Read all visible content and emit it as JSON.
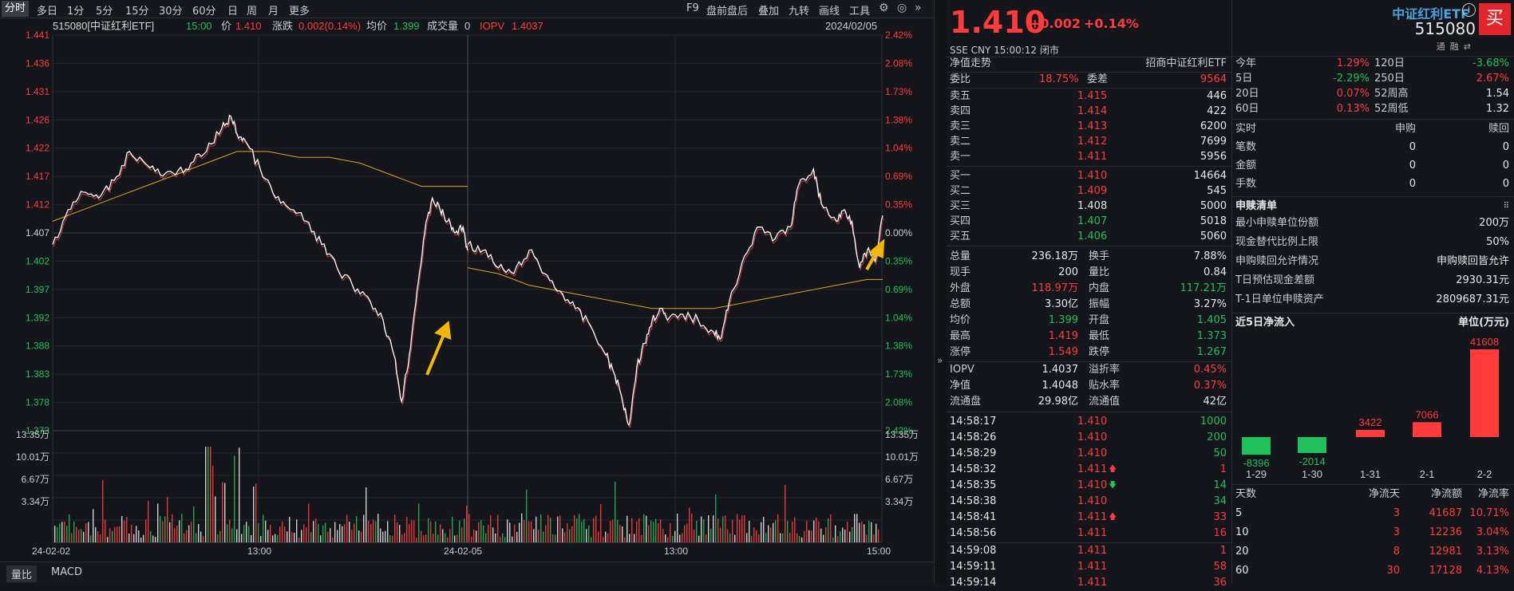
{
  "toolbar": {
    "tabs": [
      "分时",
      "多日",
      "1分",
      "5分",
      "15分",
      "30分",
      "60分",
      "日",
      "周",
      "月",
      "更多"
    ],
    "active": "分时",
    "right_items": [
      "F9",
      "盘前盘后",
      "叠加",
      "九转",
      "画线",
      "工具"
    ]
  },
  "chart_header": {
    "code_name": "515080[中证红利ETF]",
    "time": "15:00",
    "price_label": "价",
    "price": "1.410",
    "change_label": "涨跌",
    "change": "0.002(0.14%)",
    "avg_label": "均价",
    "avg": "1.399",
    "volume_label": "成交量",
    "volume": "0",
    "iopv_label": "IOPV",
    "iopv": "1.4037",
    "date": "2024/02/05"
  },
  "chart_data": {
    "type": "line",
    "y_ticks": [
      "1.441",
      "1.436",
      "1.431",
      "1.426",
      "1.422",
      "1.417",
      "1.412",
      "1.407",
      "1.402",
      "1.397",
      "1.392",
      "1.388",
      "1.383",
      "1.378",
      "1.373"
    ],
    "pct_ticks": [
      "2.42%",
      "2.08%",
      "1.73%",
      "1.38%",
      "1.04%",
      "0.69%",
      "0.35%",
      "0.00%",
      "0.35%",
      "0.69%",
      "1.04%",
      "1.38%",
      "1.73%",
      "2.08%",
      "2.42%"
    ],
    "vol_ticks": [
      "13.35万",
      "10.01万",
      "6.67万",
      "3.34万"
    ],
    "x_ticks": [
      "24-02-02",
      "13:00",
      "24-02-05",
      "13:00",
      "15:00"
    ],
    "ylim": [
      1.373,
      1.441
    ],
    "base": 1.407,
    "day1_price": [
      [
        0,
        1.405
      ],
      [
        10,
        1.411
      ],
      [
        20,
        1.414
      ],
      [
        30,
        1.413
      ],
      [
        40,
        1.416
      ],
      [
        50,
        1.421
      ],
      [
        60,
        1.419
      ],
      [
        70,
        1.417
      ],
      [
        80,
        1.417
      ],
      [
        90,
        1.419
      ],
      [
        100,
        1.421
      ],
      [
        110,
        1.425
      ],
      [
        116,
        1.427
      ],
      [
        120,
        1.424
      ],
      [
        125,
        1.423
      ],
      [
        135,
        1.418
      ],
      [
        145,
        1.413
      ],
      [
        155,
        1.411
      ],
      [
        165,
        1.409
      ],
      [
        175,
        1.405
      ],
      [
        185,
        1.401
      ],
      [
        195,
        1.398
      ],
      [
        205,
        1.396
      ],
      [
        215,
        1.392
      ],
      [
        222,
        1.386
      ],
      [
        227,
        1.378
      ],
      [
        232,
        1.386
      ],
      [
        237,
        1.397
      ],
      [
        242,
        1.407
      ],
      [
        247,
        1.413
      ],
      [
        252,
        1.411
      ],
      [
        257,
        1.409
      ],
      [
        262,
        1.407
      ],
      [
        267,
        1.408
      ],
      [
        270,
        1.404
      ]
    ],
    "day1_avg": [
      [
        0,
        1.409
      ],
      [
        20,
        1.411
      ],
      [
        40,
        1.413
      ],
      [
        60,
        1.415
      ],
      [
        80,
        1.417
      ],
      [
        100,
        1.419
      ],
      [
        120,
        1.421
      ],
      [
        140,
        1.421
      ],
      [
        160,
        1.42
      ],
      [
        180,
        1.42
      ],
      [
        200,
        1.419
      ],
      [
        220,
        1.417
      ],
      [
        240,
        1.415
      ],
      [
        270,
        1.415
      ]
    ],
    "day2_price": [
      [
        0,
        1.405
      ],
      [
        10,
        1.404
      ],
      [
        20,
        1.401
      ],
      [
        30,
        1.4
      ],
      [
        40,
        1.404
      ],
      [
        50,
        1.4
      ],
      [
        60,
        1.397
      ],
      [
        70,
        1.394
      ],
      [
        80,
        1.391
      ],
      [
        90,
        1.386
      ],
      [
        95,
        1.383
      ],
      [
        100,
        1.379
      ],
      [
        105,
        1.374
      ],
      [
        110,
        1.384
      ],
      [
        115,
        1.388
      ],
      [
        120,
        1.392
      ],
      [
        125,
        1.394
      ],
      [
        130,
        1.392
      ],
      [
        140,
        1.393
      ],
      [
        150,
        1.392
      ],
      [
        160,
        1.39
      ],
      [
        165,
        1.389
      ],
      [
        170,
        1.395
      ],
      [
        180,
        1.403
      ],
      [
        190,
        1.408
      ],
      [
        200,
        1.406
      ],
      [
        210,
        1.408
      ],
      [
        215,
        1.415
      ],
      [
        225,
        1.418
      ],
      [
        230,
        1.412
      ],
      [
        240,
        1.409
      ],
      [
        245,
        1.411
      ],
      [
        250,
        1.409
      ],
      [
        255,
        1.401
      ],
      [
        260,
        1.404
      ],
      [
        265,
        1.402
      ],
      [
        270,
        1.41
      ]
    ],
    "day2_avg": [
      [
        0,
        1.401
      ],
      [
        20,
        1.4
      ],
      [
        40,
        1.398
      ],
      [
        60,
        1.397
      ],
      [
        80,
        1.396
      ],
      [
        100,
        1.395
      ],
      [
        120,
        1.394
      ],
      [
        140,
        1.394
      ],
      [
        160,
        1.394
      ],
      [
        180,
        1.395
      ],
      [
        200,
        1.396
      ],
      [
        220,
        1.397
      ],
      [
        240,
        1.398
      ],
      [
        260,
        1.399
      ],
      [
        270,
        1.399
      ]
    ],
    "annotations": [
      "arrow-up",
      "arrow-up"
    ]
  },
  "bottom_tabs": [
    "量比",
    "MACD"
  ],
  "quote": {
    "price": "1.410",
    "change": "+0.002",
    "change_pct": "+0.14%",
    "meta": "SSE CNY 15:00:12 闭市",
    "name": "中证红利ETF",
    "code": "515080",
    "small_icons": [
      "通",
      "融",
      "⇄"
    ],
    "buy_label": "买",
    "nav_trend": "净值走势",
    "fund_name": "招商中证红利ETF",
    "weibi_label": "委比",
    "weibi": "18.75%",
    "weicha_label": "委差",
    "weicha": "9564",
    "sells": [
      {
        "label": "卖五",
        "price": "1.415",
        "vol": "446"
      },
      {
        "label": "卖四",
        "price": "1.414",
        "vol": "422"
      },
      {
        "label": "卖三",
        "price": "1.413",
        "vol": "6200"
      },
      {
        "label": "卖二",
        "price": "1.412",
        "vol": "7699"
      },
      {
        "label": "卖一",
        "price": "1.411",
        "vol": "5956"
      }
    ],
    "buys": [
      {
        "label": "买一",
        "price": "1.410",
        "vol": "14664",
        "cls": "r"
      },
      {
        "label": "买二",
        "price": "1.409",
        "vol": "545",
        "cls": "r"
      },
      {
        "label": "买三",
        "price": "1.408",
        "vol": "5000",
        "cls": "w"
      },
      {
        "label": "买四",
        "price": "1.407",
        "vol": "5018",
        "cls": "g"
      },
      {
        "label": "买五",
        "price": "1.406",
        "vol": "5060",
        "cls": "g"
      }
    ],
    "stats": [
      {
        "l1": "总量",
        "v1": "236.18万",
        "c1": "w",
        "l2": "换手",
        "v2": "7.88%",
        "c2": "w"
      },
      {
        "l1": "现手",
        "v1": "200",
        "c1": "w",
        "l2": "量比",
        "v2": "0.84",
        "c2": "w"
      },
      {
        "l1": "外盘",
        "v1": "118.97万",
        "c1": "r",
        "l2": "内盘",
        "v2": "117.21万",
        "c2": "g"
      },
      {
        "l1": "总额",
        "v1": "3.30亿",
        "c1": "w",
        "l2": "振幅",
        "v2": "3.27%",
        "c2": "w"
      },
      {
        "l1": "均价",
        "v1": "1.399",
        "c1": "g",
        "l2": "开盘",
        "v2": "1.405",
        "c2": "g"
      },
      {
        "l1": "最高",
        "v1": "1.419",
        "c1": "r",
        "l2": "最低",
        "v2": "1.373",
        "c2": "g"
      },
      {
        "l1": "涨停",
        "v1": "1.549",
        "c1": "r",
        "l2": "跌停",
        "v2": "1.267",
        "c2": "g"
      }
    ],
    "stats2": [
      {
        "l1": "IOPV",
        "v1": "1.4037",
        "c1": "w",
        "l2": "溢折率",
        "v2": "0.45%",
        "c2": "r"
      },
      {
        "l1": "净值",
        "v1": "1.4048",
        "c1": "w",
        "l2": "贴水率",
        "v2": "0.37%",
        "c2": "r"
      },
      {
        "l1": "流通盘",
        "v1": "29.98亿",
        "c1": "w",
        "l2": "流通值",
        "v2": "42亿",
        "c2": "w"
      }
    ],
    "ticks": [
      {
        "t": "14:58:17",
        "p": "1.410",
        "a": "",
        "v": "1000",
        "vc": "g"
      },
      {
        "t": "14:58:26",
        "p": "1.410",
        "a": "",
        "v": "200",
        "vc": "g"
      },
      {
        "t": "14:58:29",
        "p": "1.410",
        "a": "",
        "v": "50",
        "vc": "g"
      },
      {
        "t": "14:58:32",
        "p": "1.411",
        "a": "up",
        "v": "1",
        "vc": "r"
      },
      {
        "t": "14:58:35",
        "p": "1.410",
        "a": "down",
        "v": "14",
        "vc": "g"
      },
      {
        "t": "14:58:38",
        "p": "1.410",
        "a": "",
        "v": "34",
        "vc": "g"
      },
      {
        "t": "14:58:41",
        "p": "1.411",
        "a": "up",
        "v": "33",
        "vc": "r"
      },
      {
        "t": "14:58:56",
        "p": "1.411",
        "a": "",
        "v": "16",
        "vc": "r"
      },
      {
        "t": "14:59:08",
        "p": "1.411",
        "a": "",
        "v": "1",
        "vc": "r"
      },
      {
        "t": "14:59:11",
        "p": "1.411",
        "a": "",
        "v": "58",
        "vc": "r"
      },
      {
        "t": "14:59:14",
        "p": "1.411",
        "a": "",
        "v": "36",
        "vc": "r"
      }
    ]
  },
  "extra": {
    "perf": [
      {
        "l1": "今年",
        "v1": "1.29%",
        "c1": "r",
        "l2": "120日",
        "v2": "-3.68%",
        "c2": "g"
      },
      {
        "l1": "5日",
        "v1": "-2.29%",
        "c1": "g",
        "l2": "250日",
        "v2": "2.67%",
        "c2": "r"
      },
      {
        "l1": "20日",
        "v1": "0.07%",
        "c1": "r",
        "l2": "52周高",
        "v2": "1.54",
        "c2": "w"
      },
      {
        "l1": "60日",
        "v1": "0.13%",
        "c1": "r",
        "l2": "52周低",
        "v2": "1.32",
        "c2": "w"
      }
    ],
    "sg_head": [
      "实时",
      "申购",
      "赎回"
    ],
    "sg_rows": [
      {
        "l": "笔数",
        "a": "0",
        "b": "0"
      },
      {
        "l": "金额",
        "a": "0",
        "b": "0"
      },
      {
        "l": "手数",
        "a": "0",
        "b": "0"
      }
    ],
    "sg_list_title": "申赎清单",
    "sg_list": [
      {
        "l": "最小申赎单位份额",
        "v": "200万"
      },
      {
        "l": "现金替代比例上限",
        "v": "50%"
      },
      {
        "l": "申购赎回允许情况",
        "v": "申购赎回皆允许"
      },
      {
        "l": "T日预估现金差额",
        "v": "2930.31元"
      },
      {
        "l": "T-1日单位申赎资产",
        "v": "2809687.31元"
      }
    ],
    "flow_title": "近5日净流入",
    "flow_unit": "单位(万元)",
    "flow_bars": [
      {
        "date": "1-29",
        "value": -8396
      },
      {
        "date": "1-30",
        "value": -2014
      },
      {
        "date": "1-31",
        "value": 3422
      },
      {
        "date": "2-1",
        "value": 7066
      },
      {
        "date": "2-2",
        "value": 41608
      }
    ],
    "flow_table_head": [
      "天数",
      "净流天",
      "净流额",
      "净流率"
    ],
    "flow_table": [
      {
        "d": "5",
        "n": "3",
        "a": "41687",
        "r": "10.71%"
      },
      {
        "d": "10",
        "n": "3",
        "a": "12236",
        "r": "3.04%"
      },
      {
        "d": "20",
        "n": "8",
        "a": "12981",
        "r": "3.13%"
      },
      {
        "d": "60",
        "n": "30",
        "a": "17128",
        "r": "4.13%"
      }
    ],
    "colors": {
      "up": "#ff3b3b",
      "down": "#20c15a",
      "avg": "#e0a420",
      "price": "#ffffff",
      "arrow": "#f2b705"
    }
  }
}
